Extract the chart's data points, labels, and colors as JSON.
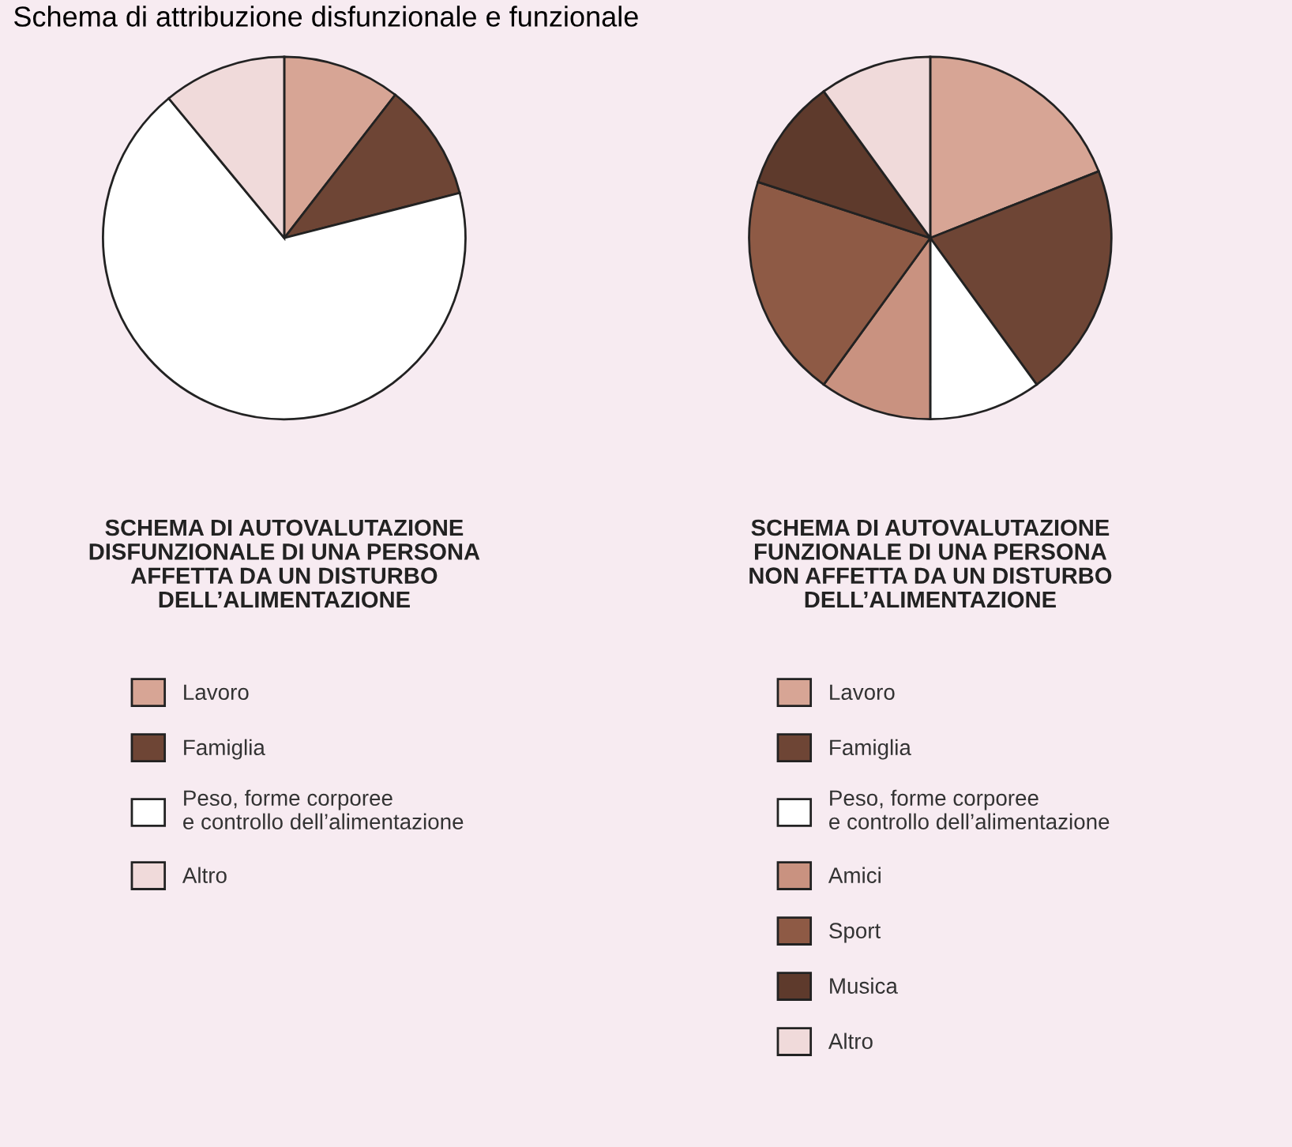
{
  "chart_data": [
    {
      "type": "pie",
      "title": "Schema di attribuzione disfunzionale e funzionale",
      "subtitle": "SCHEMA DI AUTOVALUTAZIONE\nDISFUNZIONALE DI UNA PERSONA\nAFFETTA DA UN DISTURBO\nDELL’ALIMENTAZIONE",
      "categories": [
        "Lavoro",
        "Famiglia",
        "Peso, forme corporee\ne controllo dell’alimentazione",
        "Altro"
      ],
      "values": [
        10.5,
        10.5,
        68,
        11
      ],
      "colors": [
        "#d7a595",
        "#6e4535",
        "#ffffff",
        "#f0dada"
      ],
      "legend": "bottom"
    },
    {
      "type": "pie",
      "subtitle": "SCHEMA DI AUTOVALUTAZIONE\nFUNZIONALE DI UNA PERSONA\nNON AFFETTA DA UN DISTURBO\nDELL’ALIMENTAZIONE",
      "categories": [
        "Lavoro",
        "Famiglia",
        "Peso, forme corporee\ne controllo dell’alimentazione",
        "Amici",
        "Sport",
        "Musica",
        "Altro"
      ],
      "values": [
        19,
        21,
        10,
        10,
        20,
        10,
        10
      ],
      "colors": [
        "#d7a595",
        "#6e4535",
        "#ffffff",
        "#c99280",
        "#8e5a45",
        "#5e3a2c",
        "#f0dada"
      ],
      "legend": "bottom"
    }
  ]
}
